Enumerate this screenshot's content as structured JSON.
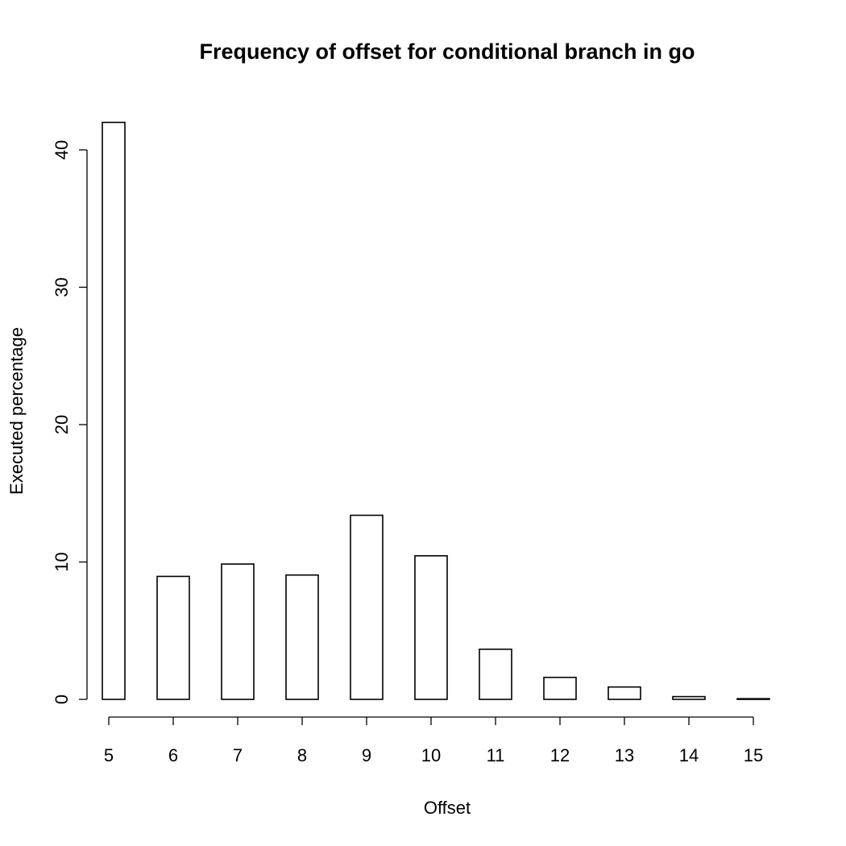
{
  "chart_data": {
    "type": "bar",
    "title": "Frequency of offset for conditional branch in go",
    "xlabel": "Offset",
    "ylabel": "Executed percentage",
    "x_ticks": [
      5,
      6,
      7,
      8,
      9,
      10,
      11,
      12,
      13,
      14,
      15
    ],
    "y_ticks": [
      0,
      10,
      20,
      30,
      40
    ],
    "xlim": [
      4.9,
      15.25
    ],
    "ylim": [
      0,
      42
    ],
    "bars": [
      {
        "x0": 4.9,
        "x1": 5.25,
        "value": 42.0
      },
      {
        "x0": 5.25,
        "x1": 5.75,
        "value": 0
      },
      {
        "x0": 5.75,
        "x1": 6.25,
        "value": 8.95
      },
      {
        "x0": 6.25,
        "x1": 6.75,
        "value": 0
      },
      {
        "x0": 6.75,
        "x1": 7.25,
        "value": 9.85
      },
      {
        "x0": 7.25,
        "x1": 7.75,
        "value": 0
      },
      {
        "x0": 7.75,
        "x1": 8.25,
        "value": 9.05
      },
      {
        "x0": 8.25,
        "x1": 8.75,
        "value": 0
      },
      {
        "x0": 8.75,
        "x1": 9.25,
        "value": 13.4
      },
      {
        "x0": 9.25,
        "x1": 9.75,
        "value": 0
      },
      {
        "x0": 9.75,
        "x1": 10.25,
        "value": 10.45
      },
      {
        "x0": 10.25,
        "x1": 10.75,
        "value": 0
      },
      {
        "x0": 10.75,
        "x1": 11.25,
        "value": 3.65
      },
      {
        "x0": 11.25,
        "x1": 11.75,
        "value": 0
      },
      {
        "x0": 11.75,
        "x1": 12.25,
        "value": 1.6
      },
      {
        "x0": 12.25,
        "x1": 12.75,
        "value": 0
      },
      {
        "x0": 12.75,
        "x1": 13.25,
        "value": 0.9
      },
      {
        "x0": 13.25,
        "x1": 13.75,
        "value": 0
      },
      {
        "x0": 13.75,
        "x1": 14.25,
        "value": 0.2
      },
      {
        "x0": 14.25,
        "x1": 14.75,
        "value": 0
      },
      {
        "x0": 14.75,
        "x1": 15.25,
        "value": 0.05
      }
    ],
    "grid": false,
    "legend": "none"
  }
}
